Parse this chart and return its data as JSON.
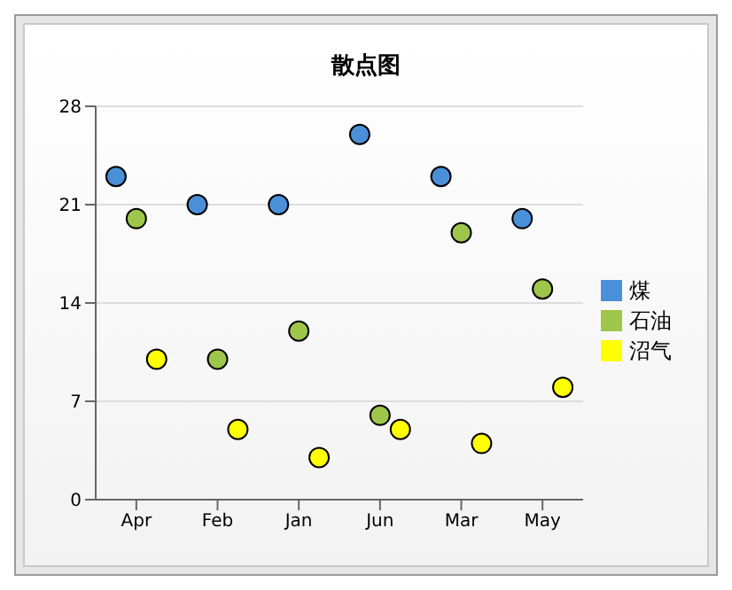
{
  "chart_data": {
    "type": "scatter",
    "title": "散点图",
    "categories": [
      "Apr",
      "Feb",
      "Jan",
      "Jun",
      "Mar",
      "May"
    ],
    "series": [
      {
        "name": "煤",
        "color": "#4a90d9",
        "values": [
          23,
          21,
          21,
          26,
          23,
          20
        ]
      },
      {
        "name": "石油",
        "color": "#9dc64a",
        "values": [
          20,
          10,
          12,
          6,
          19,
          15
        ]
      },
      {
        "name": "沼气",
        "color": "#ffff00",
        "values": [
          10,
          5,
          3,
          5,
          4,
          8
        ]
      }
    ],
    "ylim": [
      0,
      28
    ],
    "yticks": [
      0,
      7,
      14,
      21,
      28
    ],
    "grid": "y",
    "legend": "right",
    "marker": "circle"
  }
}
